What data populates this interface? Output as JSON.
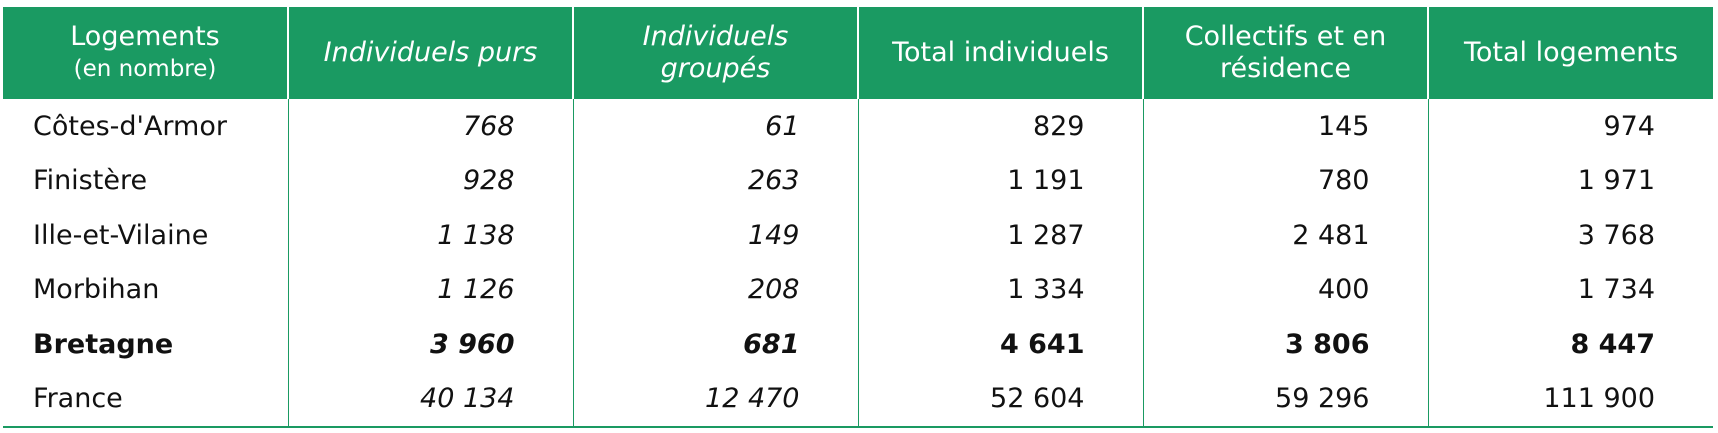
{
  "table": {
    "header": [
      [
        "Logements",
        "(en nombre)"
      ],
      "Individuels purs",
      "Individuels groupés",
      "Total individuels",
      "Collectifs et en résidence",
      "Total logements"
    ],
    "rows": [
      [
        "Côtes-d'Armor",
        "768",
        "61",
        "829",
        "145",
        "974"
      ],
      [
        "Finistère",
        "928",
        "263",
        "1 191",
        "780",
        "1 971"
      ],
      [
        "Ille-et-Vilaine",
        "1 138",
        "149",
        "1 287",
        "2 481",
        "3 768"
      ],
      [
        "Morbihan",
        "1 126",
        "208",
        "1 334",
        "400",
        "1 734"
      ],
      [
        "Bretagne",
        "3 960",
        "681",
        "4 641",
        "3 806",
        "8 447"
      ],
      [
        "France",
        "40 134",
        "12 470",
        "52 604",
        "59 296",
        "111 900"
      ]
    ]
  }
}
